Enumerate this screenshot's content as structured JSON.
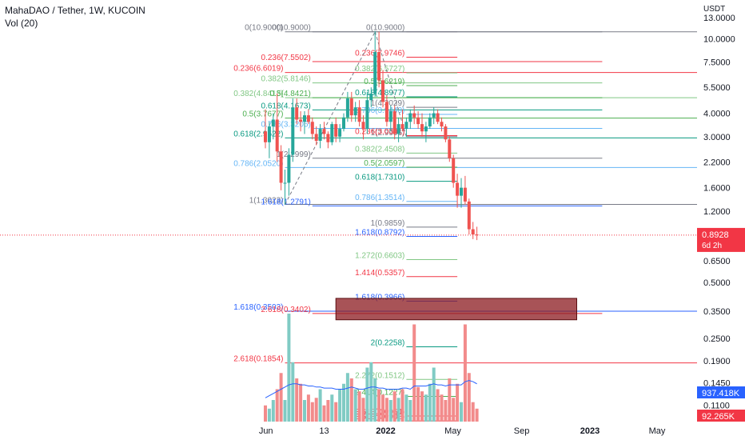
{
  "header": {
    "title": "MahaDAO / Tether, 1W, KUCOIN",
    "indicator": "Vol (20)"
  },
  "chart_data": {
    "type": "candlestick",
    "symbol": "MahaDAO / Tether",
    "interval": "1W",
    "exchange": "KUCOIN",
    "y_axis": {
      "unit_label": "USDT",
      "scale": "log",
      "ticks": [
        "13.0000",
        "10.0000",
        "7.5000",
        "5.5000",
        "4.0000",
        "3.0000",
        "2.2000",
        "1.6000",
        "1.2000",
        "0.6500",
        "0.5000",
        "0.3500",
        "0.2500",
        "0.1900",
        "0.1450",
        "0.1100"
      ],
      "range": [
        0.09,
        13.5
      ]
    },
    "x_axis": {
      "ticks": [
        {
          "label": "Jun",
          "date": "2021-06-01"
        },
        {
          "label": "13",
          "date": "2021-09-13"
        },
        {
          "label": "2022",
          "date": "2022-01-01"
        },
        {
          "label": "May",
          "date": "2022-05-01"
        },
        {
          "label": "Sep",
          "date": "2022-09-01"
        },
        {
          "label": "2023",
          "date": "2023-01-01"
        },
        {
          "label": "May",
          "date": "2023-05-01"
        }
      ]
    },
    "candles": [
      {
        "date": "2021-05-31",
        "o": 3.2,
        "h": 4.2,
        "l": 2.6,
        "c": 2.8
      },
      {
        "date": "2021-06-07",
        "o": 2.8,
        "h": 3.6,
        "l": 2.3,
        "c": 3.4
      },
      {
        "date": "2021-06-14",
        "o": 3.4,
        "h": 4.0,
        "l": 2.9,
        "c": 3.7
      },
      {
        "date": "2021-06-21",
        "o": 3.7,
        "h": 5.1,
        "l": 2.2,
        "c": 2.5
      },
      {
        "date": "2021-06-28",
        "o": 2.5,
        "h": 2.7,
        "l": 1.55,
        "c": 1.7
      },
      {
        "date": "2021-07-05",
        "o": 1.7,
        "h": 2.0,
        "l": 1.3,
        "c": 1.7
      },
      {
        "date": "2021-07-12",
        "o": 1.7,
        "h": 2.6,
        "l": 1.45,
        "c": 2.4
      },
      {
        "date": "2021-07-19",
        "o": 2.4,
        "h": 4.8,
        "l": 2.2,
        "c": 4.3
      },
      {
        "date": "2021-07-26",
        "o": 4.3,
        "h": 4.8,
        "l": 3.5,
        "c": 3.7
      },
      {
        "date": "2021-08-02",
        "o": 3.7,
        "h": 4.1,
        "l": 3.2,
        "c": 3.6
      },
      {
        "date": "2021-08-09",
        "o": 3.6,
        "h": 4.1,
        "l": 3.1,
        "c": 3.9
      },
      {
        "date": "2021-08-16",
        "o": 3.9,
        "h": 4.2,
        "l": 3.5,
        "c": 3.6
      },
      {
        "date": "2021-08-23",
        "o": 3.6,
        "h": 3.8,
        "l": 2.9,
        "c": 3.1
      },
      {
        "date": "2021-08-30",
        "o": 3.1,
        "h": 3.4,
        "l": 2.7,
        "c": 2.85
      },
      {
        "date": "2021-09-06",
        "o": 2.85,
        "h": 3.5,
        "l": 2.6,
        "c": 3.3
      },
      {
        "date": "2021-09-13",
        "o": 3.3,
        "h": 3.6,
        "l": 2.9,
        "c": 3.1
      },
      {
        "date": "2021-09-20",
        "o": 3.1,
        "h": 3.2,
        "l": 2.6,
        "c": 2.8
      },
      {
        "date": "2021-09-27",
        "o": 2.8,
        "h": 3.6,
        "l": 2.7,
        "c": 3.5
      },
      {
        "date": "2021-10-04",
        "o": 3.5,
        "h": 3.8,
        "l": 2.8,
        "c": 3.0
      },
      {
        "date": "2021-10-11",
        "o": 3.0,
        "h": 3.5,
        "l": 2.8,
        "c": 3.3
      },
      {
        "date": "2021-10-18",
        "o": 3.3,
        "h": 4.0,
        "l": 3.2,
        "c": 3.8
      },
      {
        "date": "2021-10-25",
        "o": 3.8,
        "h": 5.2,
        "l": 3.6,
        "c": 4.8
      },
      {
        "date": "2021-11-01",
        "o": 4.8,
        "h": 5.2,
        "l": 3.6,
        "c": 3.9
      },
      {
        "date": "2021-11-08",
        "o": 3.9,
        "h": 4.6,
        "l": 3.6,
        "c": 4.3
      },
      {
        "date": "2021-11-15",
        "o": 4.3,
        "h": 4.7,
        "l": 3.4,
        "c": 3.6
      },
      {
        "date": "2021-11-22",
        "o": 3.6,
        "h": 3.9,
        "l": 2.9,
        "c": 3.3
      },
      {
        "date": "2021-11-29",
        "o": 3.3,
        "h": 5.2,
        "l": 3.1,
        "c": 4.7
      },
      {
        "date": "2021-12-06",
        "o": 4.7,
        "h": 5.5,
        "l": 4.3,
        "c": 5.1
      },
      {
        "date": "2021-12-13",
        "o": 5.1,
        "h": 11.0,
        "l": 4.9,
        "c": 8.5
      },
      {
        "date": "2021-12-20",
        "o": 8.5,
        "h": 10.9,
        "l": 5.5,
        "c": 6.0
      },
      {
        "date": "2021-12-27",
        "o": 6.0,
        "h": 6.8,
        "l": 4.3,
        "c": 4.6
      },
      {
        "date": "2022-01-03",
        "o": 4.6,
        "h": 5.0,
        "l": 3.4,
        "c": 3.6
      },
      {
        "date": "2022-01-10",
        "o": 3.6,
        "h": 4.4,
        "l": 3.2,
        "c": 4.1
      },
      {
        "date": "2022-01-17",
        "o": 4.1,
        "h": 4.4,
        "l": 2.9,
        "c": 3.1
      },
      {
        "date": "2022-01-24",
        "o": 3.1,
        "h": 3.8,
        "l": 2.8,
        "c": 3.5
      },
      {
        "date": "2022-01-31",
        "o": 3.5,
        "h": 4.2,
        "l": 3.2,
        "c": 3.3
      },
      {
        "date": "2022-02-07",
        "o": 3.3,
        "h": 3.8,
        "l": 3.0,
        "c": 3.6
      },
      {
        "date": "2022-02-14",
        "o": 3.6,
        "h": 4.2,
        "l": 3.3,
        "c": 4.0
      },
      {
        "date": "2022-02-21",
        "o": 4.0,
        "h": 4.4,
        "l": 3.5,
        "c": 3.8
      },
      {
        "date": "2022-02-28",
        "o": 3.8,
        "h": 4.1,
        "l": 3.3,
        "c": 3.5
      },
      {
        "date": "2022-03-07",
        "o": 3.5,
        "h": 4.0,
        "l": 3.0,
        "c": 3.2
      },
      {
        "date": "2022-03-14",
        "o": 3.2,
        "h": 3.6,
        "l": 2.8,
        "c": 3.4
      },
      {
        "date": "2022-03-21",
        "o": 3.4,
        "h": 4.0,
        "l": 3.3,
        "c": 3.8
      },
      {
        "date": "2022-03-28",
        "o": 3.8,
        "h": 4.3,
        "l": 3.5,
        "c": 4.0
      },
      {
        "date": "2022-04-04",
        "o": 4.0,
        "h": 4.2,
        "l": 3.5,
        "c": 3.6
      },
      {
        "date": "2022-04-11",
        "o": 3.6,
        "h": 3.8,
        "l": 3.2,
        "c": 3.4
      },
      {
        "date": "2022-04-18",
        "o": 3.4,
        "h": 3.5,
        "l": 2.8,
        "c": 2.9
      },
      {
        "date": "2022-04-25",
        "o": 2.9,
        "h": 3.0,
        "l": 2.2,
        "c": 2.3
      },
      {
        "date": "2022-05-02",
        "o": 2.3,
        "h": 2.4,
        "l": 1.6,
        "c": 1.7
      },
      {
        "date": "2022-05-09",
        "o": 1.7,
        "h": 1.9,
        "l": 1.25,
        "c": 1.45
      },
      {
        "date": "2022-05-16",
        "o": 1.45,
        "h": 1.8,
        "l": 1.25,
        "c": 1.6
      },
      {
        "date": "2022-05-23",
        "o": 1.6,
        "h": 1.85,
        "l": 1.3,
        "c": 1.35
      },
      {
        "date": "2022-05-30",
        "o": 1.35,
        "h": 1.4,
        "l": 0.9,
        "c": 0.96
      },
      {
        "date": "2022-06-06",
        "o": 0.96,
        "h": 1.05,
        "l": 0.85,
        "c": 0.9
      },
      {
        "date": "2022-06-13",
        "o": 0.9,
        "h": 0.99,
        "l": 0.84,
        "c": 0.8928
      }
    ],
    "volume": [
      0.15,
      0.12,
      0.2,
      0.3,
      0.45,
      0.2,
      1.0,
      0.55,
      0.4,
      0.35,
      0.2,
      0.25,
      0.18,
      0.22,
      0.3,
      0.15,
      0.2,
      0.25,
      0.18,
      0.3,
      0.35,
      0.45,
      0.4,
      0.3,
      0.28,
      0.22,
      0.5,
      0.55,
      0.4,
      0.3,
      0.25,
      0.22,
      0.2,
      0.28,
      0.22,
      0.3,
      0.25,
      0.2,
      0.9,
      0.32,
      0.28,
      0.25,
      0.35,
      0.5,
      0.3,
      0.25,
      0.2,
      0.4,
      0.22,
      0.35,
      0.18,
      0.9,
      0.45,
      0.18,
      0.12
    ],
    "volume_ma": [
      0.22,
      0.24,
      0.26,
      0.28,
      0.3,
      0.32,
      0.34,
      0.35,
      0.35,
      0.34,
      0.34,
      0.33,
      0.33,
      0.32,
      0.32,
      0.31,
      0.31,
      0.31,
      0.3,
      0.3,
      0.3,
      0.31,
      0.32,
      0.31,
      0.3,
      0.3,
      0.31,
      0.32,
      0.32,
      0.31,
      0.31,
      0.3,
      0.3,
      0.3,
      0.3,
      0.31,
      0.31,
      0.3,
      0.33,
      0.33,
      0.33,
      0.33,
      0.34,
      0.35,
      0.34,
      0.34,
      0.33,
      0.34,
      0.34,
      0.34,
      0.34,
      0.37,
      0.38,
      0.37,
      0.35
    ],
    "last_price": {
      "label": "0.8928",
      "countdown": "6d 2h"
    },
    "volume_labels": [
      {
        "label": "937.418K",
        "color": "#2962ff"
      },
      {
        "label": "92.265K",
        "color": "#f23645"
      }
    ],
    "fib_set_a": [
      {
        "label": "0(10.9000)",
        "price": 10.9,
        "color": "#787b86"
      },
      {
        "label": "0.236(7.5502)",
        "price": 7.5502,
        "color": "#f23645"
      },
      {
        "label": "0.382(5.8146)",
        "price": 5.8146,
        "color": "#81c784"
      },
      {
        "label": "0.5(4.8421)",
        "price": 4.8421,
        "color": "#4caf50"
      },
      {
        "label": "0.618(4.1673)",
        "price": 4.1673,
        "color": "#089981"
      },
      {
        "label": "0.786(3.3206)",
        "price": 3.3206,
        "color": "#64b5f6"
      },
      {
        "label": "1(2.2999)",
        "price": 2.2999,
        "color": "#787b86"
      },
      {
        "label": "1.618(1.2791)",
        "price": 1.2791,
        "color": "#2962ff"
      },
      {
        "label": "2.618(0.3402)",
        "price": 0.3402,
        "color": "#f23645"
      }
    ],
    "fib_set_b": [
      {
        "label": "0(10.9000)",
        "price": 10.9,
        "color": "#787b86"
      },
      {
        "label": "0.236(6.6019)",
        "price": 6.6019,
        "color": "#f23645"
      },
      {
        "label": "0.382(4.8413)",
        "price": 4.8413,
        "color": "#81c784"
      },
      {
        "label": "0.5(3.7677)",
        "price": 3.7677,
        "color": "#4caf50"
      },
      {
        "label": "0.618(2.9522)",
        "price": 2.9522,
        "color": "#089981"
      },
      {
        "label": "0.786(2.0520)",
        "price": 2.052,
        "color": "#64b5f6"
      },
      {
        "label": "1(1.3023)",
        "price": 1.3023,
        "color": "#787b86"
      },
      {
        "label": "1.618(0.3503)",
        "price": 0.3503,
        "color": "#2962ff"
      },
      {
        "label": "2.618(0.1854)",
        "price": 0.1854,
        "color": "#f23645"
      }
    ],
    "fib_set_c": [
      {
        "label": "0(10.9000)",
        "price": 10.9,
        "color": "#787b86"
      },
      {
        "label": "0.236(7.9746)",
        "price": 7.9746,
        "color": "#f23645"
      },
      {
        "label": "0.382(6.5727)",
        "price": 6.5727,
        "color": "#81c784"
      },
      {
        "label": "0.5(5.6219)",
        "price": 5.6219,
        "color": "#4caf50"
      },
      {
        "label": "0.618(4.8977)",
        "price": 4.8977,
        "color": "#089981"
      },
      {
        "label": "0.786(3.9440)",
        "price": 3.944,
        "color": "#64b5f6"
      },
      {
        "label": "1(4.3029)",
        "price": 4.3029,
        "color": "#787b86"
      },
      {
        "label": "1(2.9996)",
        "price": 2.9996,
        "color": "#787b86"
      },
      {
        "label": "0.236(3.0391)",
        "price": 3.0391,
        "color": "#f23645"
      },
      {
        "label": "0.382(2.4508)",
        "price": 2.4508,
        "color": "#81c784"
      },
      {
        "label": "0.5(2.0597)",
        "price": 2.0597,
        "color": "#4caf50"
      },
      {
        "label": "0.618(1.7310)",
        "price": 1.731,
        "color": "#089981"
      },
      {
        "label": "0.786(1.3514)",
        "price": 1.3514,
        "color": "#64b5f6"
      },
      {
        "label": "1(0.9859)",
        "price": 0.9859,
        "color": "#787b86"
      },
      {
        "label": "1.618(0.8792)",
        "price": 0.8792,
        "color": "#2962ff"
      },
      {
        "label": "1.272(0.6603)",
        "price": 0.6603,
        "color": "#81c784"
      },
      {
        "label": "1.414(0.5357)",
        "price": 0.5357,
        "color": "#f23645"
      },
      {
        "label": "1.618(0.3966)",
        "price": 0.3966,
        "color": "#2962ff"
      },
      {
        "label": "2(0.2258)",
        "price": 0.2258,
        "color": "#089981"
      },
      {
        "label": "2.272(0.1512)",
        "price": 0.1512,
        "color": "#81c784"
      },
      {
        "label": "2.414(0.1227)",
        "price": 0.1227,
        "color": "#4caf50"
      },
      {
        "label": "3.618(0.0964)",
        "price": 0.0964,
        "color": "#f23645"
      },
      {
        "label": "3.618(0.0908)",
        "price": 0.0908,
        "color": "#f23645"
      }
    ],
    "zone": {
      "label": "2.618(0.3402)",
      "price_top": 0.41,
      "price_bottom": 0.315,
      "color": "#8b1a1f"
    },
    "colors": {
      "up": "#26a69a",
      "down": "#ef5350",
      "vol_up": "#80cbc4",
      "vol_down": "#f28b8b",
      "ma": "#2962ff",
      "last_price": "#f23645"
    },
    "grid": false
  }
}
